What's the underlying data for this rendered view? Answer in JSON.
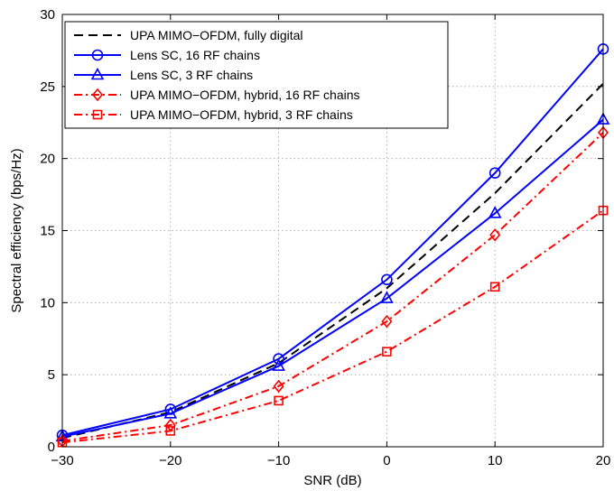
{
  "chart_data": {
    "type": "line",
    "title": "",
    "xlabel": "SNR (dB)",
    "ylabel": "Spectral efficiency (bps/Hz)",
    "xlim": [
      -30,
      20
    ],
    "ylim": [
      0,
      30
    ],
    "xticks": [
      -30,
      -20,
      -10,
      0,
      10,
      20
    ],
    "yticks": [
      0,
      5,
      10,
      15,
      20,
      25,
      30
    ],
    "xtick_labels": [
      "−30",
      "−20",
      "−10",
      "0",
      "10",
      "20"
    ],
    "ytick_labels": [
      "0",
      "5",
      "10",
      "15",
      "20",
      "25",
      "30"
    ],
    "grid": true,
    "legend_position": "top-left",
    "x": [
      -30,
      -20,
      -10,
      0,
      10,
      20
    ],
    "series": [
      {
        "name": "UPA MIMO−OFDM, fully digital",
        "values": [
          0.6,
          2.4,
          5.8,
          11.0,
          17.6,
          25.2
        ],
        "color": "#000000",
        "dash": "dash",
        "marker": "none"
      },
      {
        "name": "Lens SC, 16 RF chains",
        "values": [
          0.8,
          2.6,
          6.1,
          11.6,
          19.0,
          27.6
        ],
        "color": "#0000ff",
        "dash": "solid",
        "marker": "circle"
      },
      {
        "name": "Lens SC, 3 RF chains",
        "values": [
          0.7,
          2.3,
          5.6,
          10.3,
          16.2,
          22.7
        ],
        "color": "#0000ff",
        "dash": "solid",
        "marker": "triangle"
      },
      {
        "name": "UPA MIMO−OFDM, hybrid, 16 RF chains",
        "values": [
          0.4,
          1.5,
          4.2,
          8.7,
          14.7,
          21.8
        ],
        "color": "#ff0000",
        "dash": "dashdot",
        "marker": "diamond"
      },
      {
        "name": "UPA MIMO−OFDM, hybrid, 3 RF chains",
        "values": [
          0.3,
          1.1,
          3.2,
          6.6,
          11.1,
          16.4
        ],
        "color": "#ff0000",
        "dash": "dashdot",
        "marker": "square"
      }
    ]
  }
}
